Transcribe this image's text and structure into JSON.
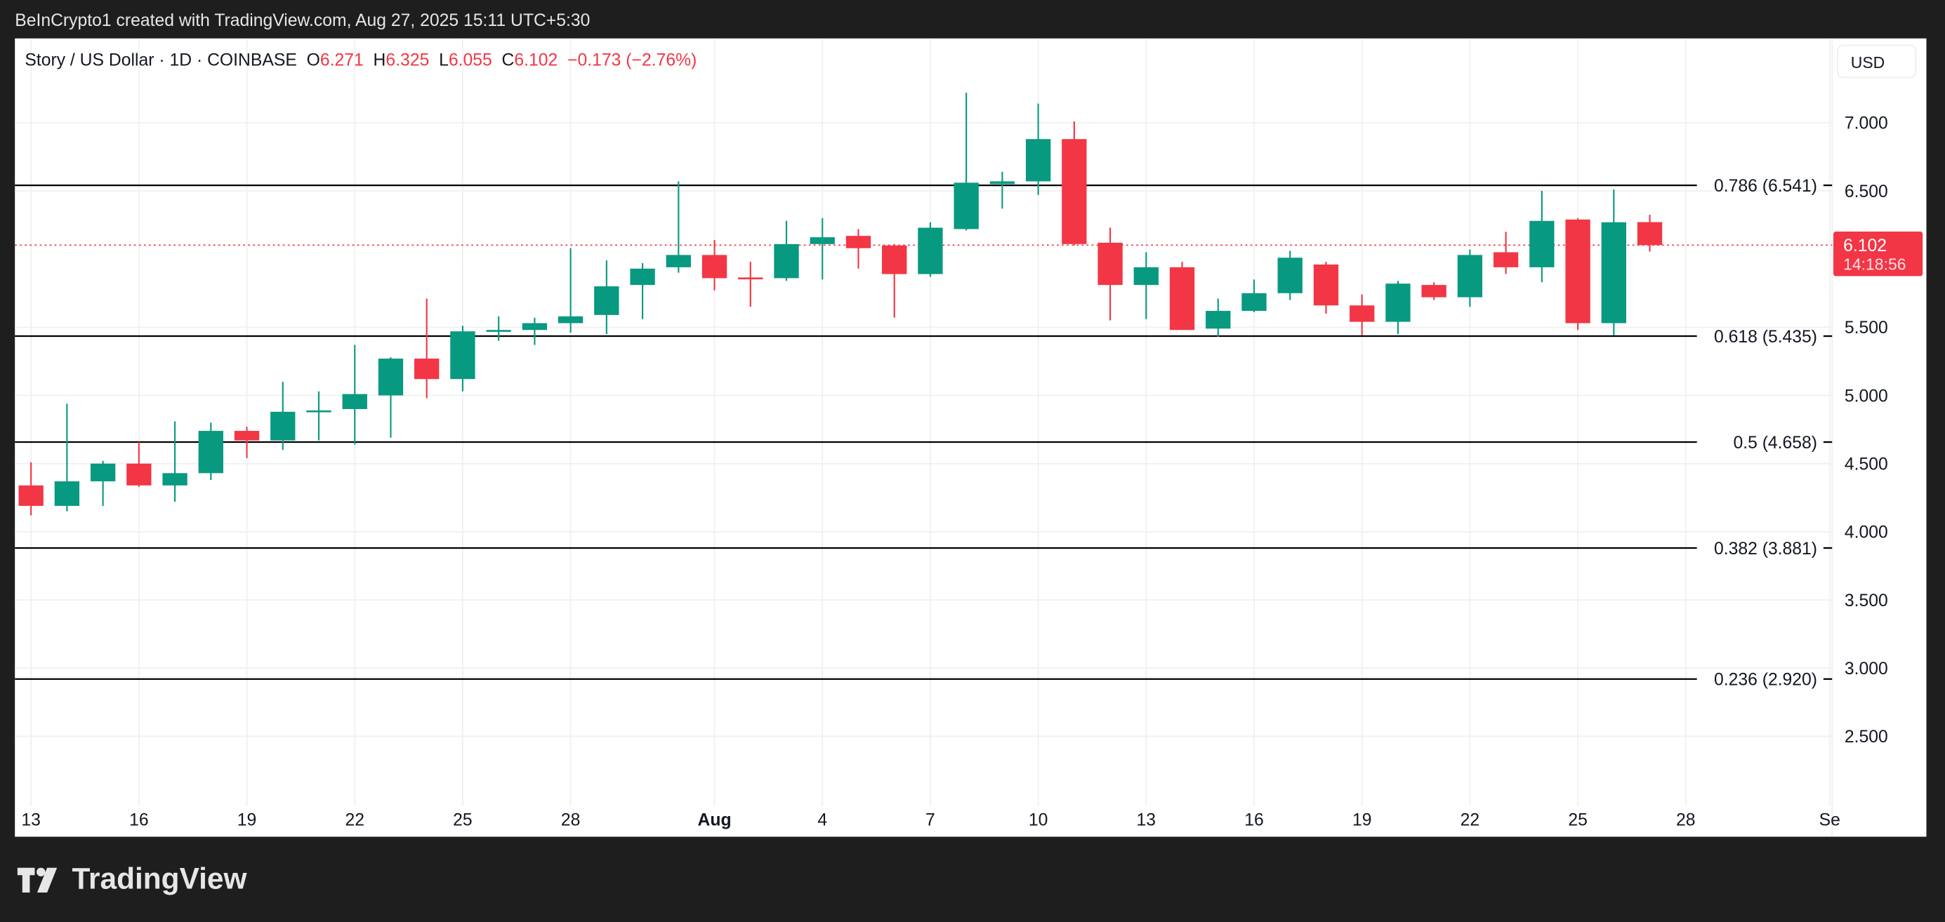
{
  "header": {
    "credit": "BeInCrypto1 created with TradingView.com, Aug 27, 2025 15:11 UTC+5:30"
  },
  "legend": {
    "symbol": "Story / US Dollar · 1D · COINBASE",
    "o_label": "O",
    "o": "6.271",
    "h_label": "H",
    "h": "6.325",
    "l_label": "L",
    "l": "6.055",
    "c_label": "C",
    "c": "6.102",
    "change": "−0.173 (−2.76%)"
  },
  "currency_button": "USD",
  "footer": {
    "brand": "TradingView"
  },
  "colors": {
    "up": "#089981",
    "down": "#f23645",
    "fib": "#000000",
    "grid": "#f0f0f0"
  },
  "chart_data": {
    "type": "candlestick",
    "title": "Story / US Dollar · 1D · COINBASE",
    "ylim": [
      2.0,
      7.6
    ],
    "y_ticks": [
      "7.000",
      "6.500",
      "5.500",
      "5.000",
      "4.500",
      "4.000",
      "3.500",
      "3.000",
      "2.500"
    ],
    "x_ticks": [
      {
        "label": "13",
        "day": 0
      },
      {
        "label": "16",
        "day": 3
      },
      {
        "label": "19",
        "day": 6
      },
      {
        "label": "22",
        "day": 9
      },
      {
        "label": "25",
        "day": 12
      },
      {
        "label": "28",
        "day": 15
      },
      {
        "label": "Aug",
        "day": 19
      },
      {
        "label": "4",
        "day": 22
      },
      {
        "label": "7",
        "day": 25
      },
      {
        "label": "10",
        "day": 28
      },
      {
        "label": "13",
        "day": 31
      },
      {
        "label": "16",
        "day": 34
      },
      {
        "label": "19",
        "day": 37
      },
      {
        "label": "22",
        "day": 40
      },
      {
        "label": "25",
        "day": 43
      },
      {
        "label": "28",
        "day": 46
      },
      {
        "label": "Se",
        "day": 50
      }
    ],
    "current_price": {
      "value": 6.102,
      "label": "6.102",
      "countdown": "14:18:56"
    },
    "fib_levels": [
      {
        "value": 6.541,
        "label": "0.786 (6.541)"
      },
      {
        "value": 5.435,
        "label": "0.618 (5.435)"
      },
      {
        "value": 4.658,
        "label": "0.5 (4.658)"
      },
      {
        "value": 3.881,
        "label": "0.382 (3.881)"
      },
      {
        "value": 2.92,
        "label": "0.236 (2.920)"
      }
    ],
    "candles_ohlc": [
      [
        4.34,
        4.51,
        4.12,
        4.19
      ],
      [
        4.19,
        4.94,
        4.15,
        4.37
      ],
      [
        4.37,
        4.52,
        4.19,
        4.5
      ],
      [
        4.5,
        4.66,
        4.33,
        4.34
      ],
      [
        4.34,
        4.81,
        4.22,
        4.43
      ],
      [
        4.43,
        4.8,
        4.38,
        4.74
      ],
      [
        4.74,
        4.77,
        4.54,
        4.67
      ],
      [
        4.67,
        5.1,
        4.6,
        4.88
      ],
      [
        4.88,
        5.03,
        4.67,
        4.89
      ],
      [
        4.9,
        5.37,
        4.64,
        5.01
      ],
      [
        5.0,
        5.28,
        4.69,
        5.27
      ],
      [
        5.27,
        5.71,
        4.98,
        5.12
      ],
      [
        5.12,
        5.51,
        5.03,
        5.47
      ],
      [
        5.47,
        5.58,
        5.4,
        5.48
      ],
      [
        5.48,
        5.57,
        5.37,
        5.53
      ],
      [
        5.53,
        6.08,
        5.46,
        5.58
      ],
      [
        5.59,
        5.99,
        5.45,
        5.8
      ],
      [
        5.81,
        5.97,
        5.56,
        5.93
      ],
      [
        5.94,
        6.57,
        5.9,
        6.03
      ],
      [
        6.03,
        6.14,
        5.77,
        5.86
      ],
      [
        5.865,
        5.98,
        5.65,
        5.86
      ],
      [
        5.86,
        6.28,
        5.84,
        6.11
      ],
      [
        6.11,
        6.3,
        5.85,
        6.16
      ],
      [
        6.17,
        6.22,
        5.93,
        6.08
      ],
      [
        6.1,
        6.11,
        5.57,
        5.89
      ],
      [
        5.89,
        6.27,
        5.87,
        6.23
      ],
      [
        6.22,
        7.22,
        6.21,
        6.56
      ],
      [
        6.55,
        6.64,
        6.37,
        6.57
      ],
      [
        6.57,
        7.14,
        6.47,
        6.88
      ],
      [
        6.88,
        7.01,
        6.1,
        6.11
      ],
      [
        6.12,
        6.23,
        5.55,
        5.81
      ],
      [
        5.81,
        6.05,
        5.56,
        5.94
      ],
      [
        5.94,
        5.98,
        5.48,
        5.48
      ],
      [
        5.49,
        5.71,
        5.43,
        5.62
      ],
      [
        5.62,
        5.85,
        5.61,
        5.75
      ],
      [
        5.75,
        6.06,
        5.7,
        6.01
      ],
      [
        5.96,
        5.98,
        5.6,
        5.66
      ],
      [
        5.66,
        5.74,
        5.44,
        5.54
      ],
      [
        5.54,
        5.84,
        5.45,
        5.82
      ],
      [
        5.81,
        5.83,
        5.7,
        5.72
      ],
      [
        5.72,
        6.07,
        5.65,
        6.03
      ],
      [
        6.05,
        6.2,
        5.89,
        5.94
      ],
      [
        5.94,
        6.5,
        5.83,
        6.28
      ],
      [
        6.29,
        6.3,
        5.48,
        5.53
      ],
      [
        5.53,
        6.51,
        5.44,
        6.27
      ],
      [
        6.271,
        6.325,
        6.055,
        6.102
      ]
    ],
    "start_date": "Jul 13"
  }
}
